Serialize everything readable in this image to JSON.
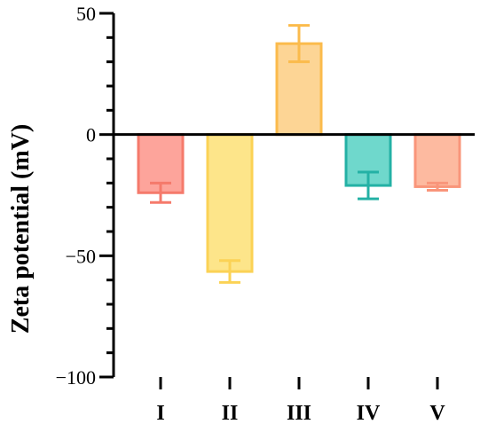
{
  "chart_data": {
    "type": "bar",
    "title": "",
    "xlabel": "",
    "ylabel": "Zeta potential (mV)",
    "ylim": [
      -100,
      50
    ],
    "yticks_major": [
      -100,
      -50,
      0,
      50
    ],
    "ytick_labels": [
      "−100",
      "−50",
      "0",
      "50"
    ],
    "yticks_minor_step": 10,
    "grid": false,
    "categories": [
      "I",
      "II",
      "III",
      "IV",
      "V"
    ],
    "values": [
      -24,
      -56.5,
      37.5,
      -21,
      -21.5
    ],
    "errors": [
      4,
      4.5,
      7.5,
      5.5,
      1.5
    ],
    "fill_colors": [
      "#fda49b",
      "#fde58a",
      "#fdd595",
      "#6fd8cc",
      "#fdbaa0"
    ],
    "stroke_colors": [
      "#f57a6b",
      "#fbd255",
      "#fbbb4c",
      "#24b1a5",
      "#f9957a"
    ]
  }
}
